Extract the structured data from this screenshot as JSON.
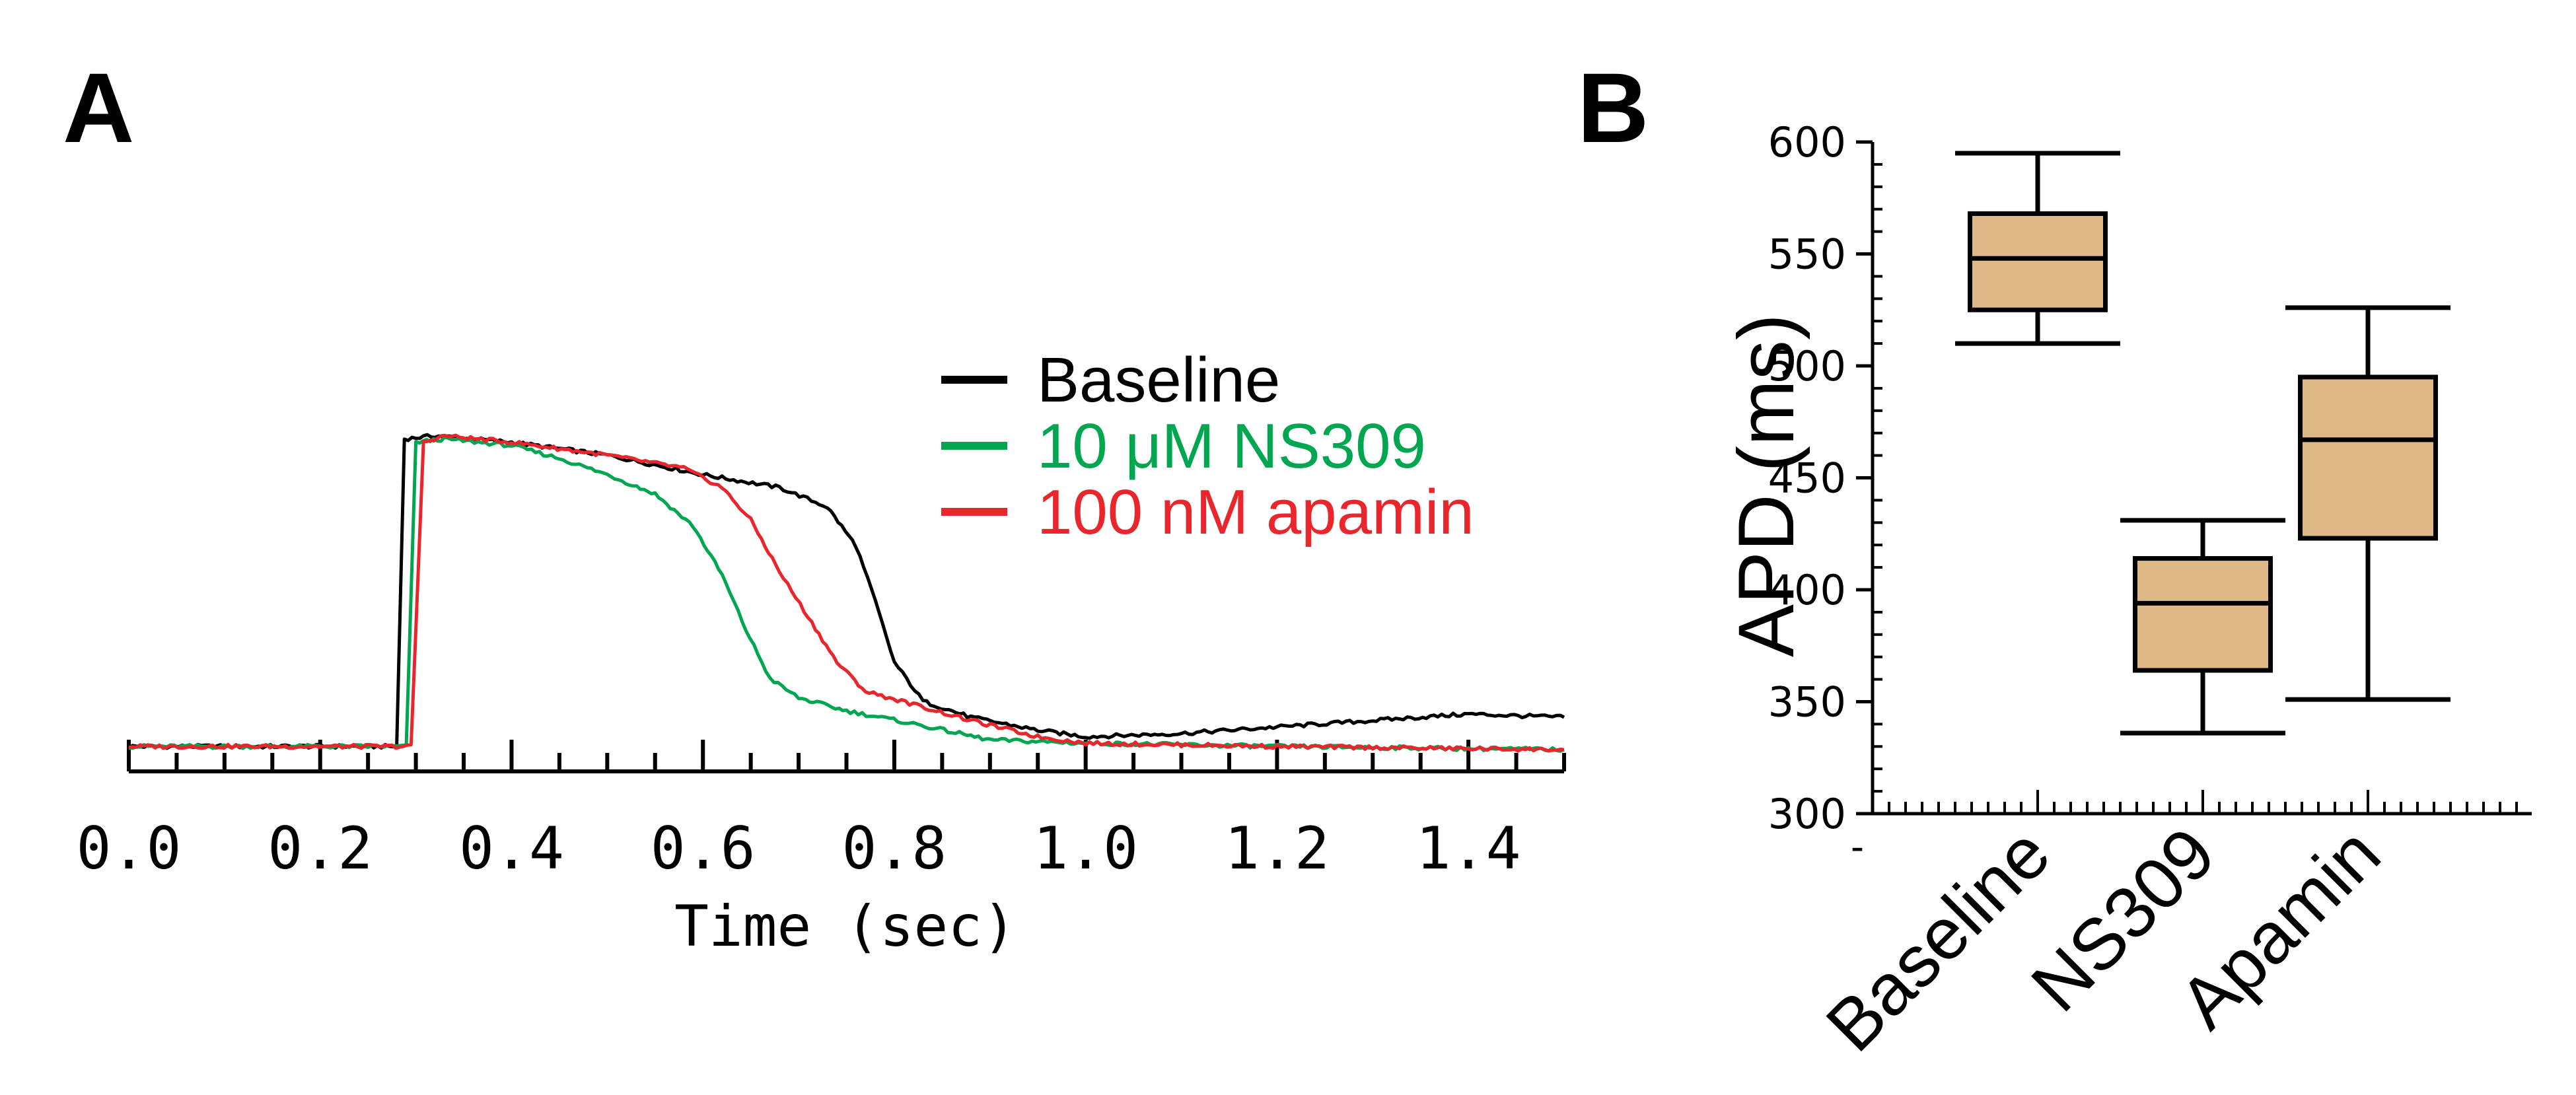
{
  "panels": {
    "a_label": "A",
    "b_label": "B"
  },
  "chart_data": [
    {
      "type": "line",
      "panel": "A",
      "title": "",
      "xlabel": "Time (sec)",
      "ylabel": "",
      "xlim": [
        0.0,
        1.5
      ],
      "x_ticks": [
        "0.0",
        "0.2",
        "0.4",
        "0.6",
        "0.8",
        "1.0",
        "1.2",
        "1.4"
      ],
      "grid": false,
      "legend_position": "top-right",
      "series": [
        {
          "name": "Baseline",
          "color": "#000000",
          "points": [
            [
              0.0,
              0.02
            ],
            [
              0.28,
              0.02
            ],
            [
              0.288,
              0.97
            ],
            [
              0.32,
              0.98
            ],
            [
              0.4,
              0.96
            ],
            [
              0.5,
              0.92
            ],
            [
              0.6,
              0.86
            ],
            [
              0.68,
              0.82
            ],
            [
              0.73,
              0.76
            ],
            [
              0.76,
              0.64
            ],
            [
              0.78,
              0.47
            ],
            [
              0.8,
              0.28
            ],
            [
              0.83,
              0.16
            ],
            [
              0.88,
              0.11
            ],
            [
              0.95,
              0.07
            ],
            [
              1.0,
              0.05
            ],
            [
              1.1,
              0.06
            ],
            [
              1.2,
              0.08
            ],
            [
              1.3,
              0.1
            ],
            [
              1.4,
              0.12
            ],
            [
              1.5,
              0.11
            ]
          ]
        },
        {
          "name": "10 μM NS309",
          "color": "#00a650",
          "points": [
            [
              0.0,
              0.02
            ],
            [
              0.29,
              0.02
            ],
            [
              0.3,
              0.96
            ],
            [
              0.33,
              0.97
            ],
            [
              0.4,
              0.95
            ],
            [
              0.45,
              0.91
            ],
            [
              0.5,
              0.86
            ],
            [
              0.55,
              0.8
            ],
            [
              0.59,
              0.7
            ],
            [
              0.62,
              0.55
            ],
            [
              0.645,
              0.38
            ],
            [
              0.67,
              0.23
            ],
            [
              0.7,
              0.17
            ],
            [
              0.75,
              0.13
            ],
            [
              0.82,
              0.09
            ],
            [
              0.9,
              0.04
            ],
            [
              1.0,
              0.03
            ],
            [
              1.2,
              0.02
            ],
            [
              1.5,
              0.01
            ]
          ]
        },
        {
          "name": "100 nM apamin",
          "color": "#e8262c",
          "points": [
            [
              0.0,
              0.02
            ],
            [
              0.295,
              0.02
            ],
            [
              0.308,
              0.96
            ],
            [
              0.33,
              0.98
            ],
            [
              0.4,
              0.96
            ],
            [
              0.5,
              0.92
            ],
            [
              0.58,
              0.88
            ],
            [
              0.62,
              0.82
            ],
            [
              0.65,
              0.72
            ],
            [
              0.68,
              0.56
            ],
            [
              0.71,
              0.42
            ],
            [
              0.74,
              0.28
            ],
            [
              0.77,
              0.19
            ],
            [
              0.82,
              0.15
            ],
            [
              0.88,
              0.1
            ],
            [
              0.95,
              0.05
            ],
            [
              1.0,
              0.03
            ],
            [
              1.2,
              0.02
            ],
            [
              1.5,
              0.01
            ]
          ]
        }
      ]
    },
    {
      "type": "box",
      "panel": "B",
      "title": "",
      "xlabel": "",
      "ylabel": "APD (ms)",
      "ylim": [
        300,
        600
      ],
      "y_ticks": [
        "300",
        "350",
        "400",
        "450",
        "500",
        "550",
        "600"
      ],
      "categories": [
        "Baseline",
        "NS309",
        "Apamin"
      ],
      "box_color": "#deb887",
      "boxes": [
        {
          "category": "Baseline",
          "min": 510,
          "q1": 525,
          "median": 548,
          "q3": 568,
          "max": 595
        },
        {
          "category": "NS309",
          "min": 336,
          "q1": 364,
          "median": 394,
          "q3": 414,
          "max": 431
        },
        {
          "category": "Apamin",
          "min": 351,
          "q1": 423,
          "median": 467,
          "q3": 495,
          "max": 526
        }
      ],
      "grid": false
    }
  ]
}
